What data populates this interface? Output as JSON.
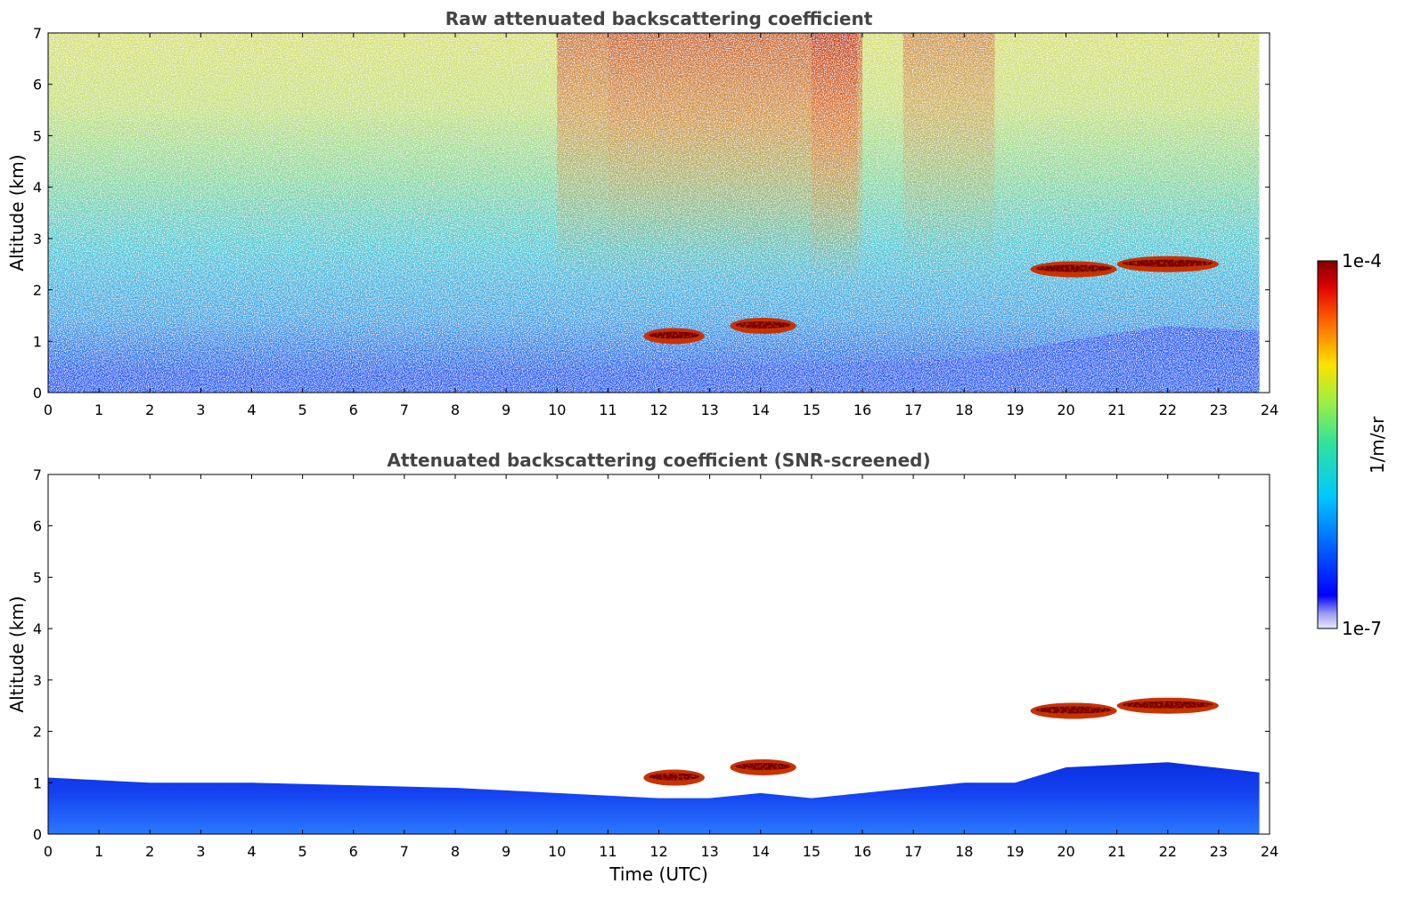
{
  "chart_data": [
    {
      "type": "heatmap",
      "title": "Raw attenuated backscattering coefficient",
      "xlabel": "",
      "ylabel": "Altitude (km)",
      "xlim": [
        0,
        24
      ],
      "ylim": [
        0,
        7
      ],
      "xticks": [
        "0",
        "1",
        "2",
        "3",
        "4",
        "5",
        "6",
        "7",
        "8",
        "9",
        "10",
        "11",
        "12",
        "13",
        "14",
        "15",
        "16",
        "17",
        "18",
        "19",
        "20",
        "21",
        "22",
        "23",
        "24"
      ],
      "yticks": [
        "0",
        "1",
        "2",
        "3",
        "4",
        "5",
        "6",
        "7"
      ],
      "data_end_time": 23.8,
      "boundary_layer_top_km": [
        [
          0,
          0.5
        ],
        [
          3,
          0.45
        ],
        [
          6,
          0.42
        ],
        [
          9,
          0.45
        ],
        [
          12,
          0.5
        ],
        [
          15,
          0.55
        ],
        [
          18,
          0.65
        ],
        [
          20,
          1.0
        ],
        [
          22,
          1.3
        ],
        [
          23.8,
          1.2
        ]
      ],
      "cloud_layers": [
        {
          "start": 11.7,
          "end": 12.9,
          "altitude_km": 1.1
        },
        {
          "start": 13.4,
          "end": 14.7,
          "altitude_km": 1.3
        },
        {
          "start": 19.3,
          "end": 21.0,
          "altitude_km": 2.4
        },
        {
          "start": 21.0,
          "end": 23.0,
          "altitude_km": 2.5
        }
      ]
    },
    {
      "type": "heatmap",
      "title": "Attenuated backscattering coefficient (SNR-screened)",
      "xlabel": "Time (UTC)",
      "ylabel": "Altitude (km)",
      "xlim": [
        0,
        24
      ],
      "ylim": [
        0,
        7
      ],
      "xticks": [
        "0",
        "1",
        "2",
        "3",
        "4",
        "5",
        "6",
        "7",
        "8",
        "9",
        "10",
        "11",
        "12",
        "13",
        "14",
        "15",
        "16",
        "17",
        "18",
        "19",
        "20",
        "21",
        "22",
        "23",
        "24"
      ],
      "yticks": [
        "0",
        "1",
        "2",
        "3",
        "4",
        "5",
        "6",
        "7"
      ],
      "data_end_time": 23.8,
      "screened_top_km": [
        [
          0,
          1.1
        ],
        [
          2,
          1.0
        ],
        [
          4,
          1.0
        ],
        [
          6,
          0.95
        ],
        [
          8,
          0.9
        ],
        [
          10,
          0.8
        ],
        [
          11,
          0.75
        ],
        [
          12,
          0.7
        ],
        [
          13,
          0.7
        ],
        [
          14,
          0.8
        ],
        [
          15,
          0.7
        ],
        [
          16,
          0.8
        ],
        [
          17,
          0.9
        ],
        [
          18,
          1.0
        ],
        [
          19,
          1.0
        ],
        [
          20,
          1.3
        ],
        [
          22,
          1.4
        ],
        [
          23.8,
          1.2
        ]
      ],
      "cloud_layers": [
        {
          "start": 11.7,
          "end": 12.9,
          "altitude_km": 1.1
        },
        {
          "start": 13.4,
          "end": 14.7,
          "altitude_km": 1.3
        },
        {
          "start": 19.3,
          "end": 21.0,
          "altitude_km": 2.4
        },
        {
          "start": 21.0,
          "end": 23.0,
          "altitude_km": 2.5
        }
      ]
    }
  ],
  "colorbar": {
    "max_label": "1e-4",
    "min_label": "1e-7",
    "unit_label": "1/m/sr",
    "colormap": "jet"
  }
}
